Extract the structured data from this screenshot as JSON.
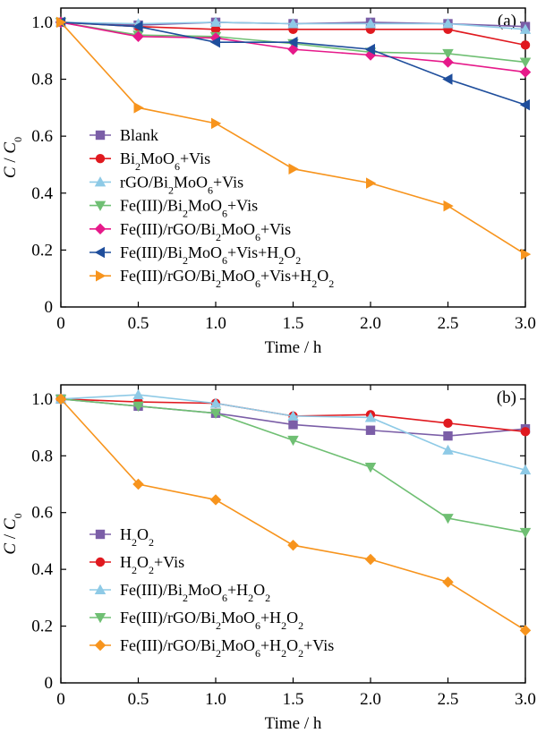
{
  "chart_data": [
    {
      "type": "line",
      "panel_label": "(a)",
      "xlabel": "Time / h",
      "ylabel": "C / C0",
      "xlim": [
        0,
        3.0
      ],
      "ylim": [
        0,
        1.05
      ],
      "x_ticks": [
        "0",
        "0.5",
        "1.0",
        "1.5",
        "2.0",
        "2.5",
        "3.0"
      ],
      "y_ticks": [
        "0",
        "0.2",
        "0.4",
        "0.6",
        "0.8",
        "1.0"
      ],
      "legend_position": "bottom-left",
      "x": [
        0,
        0.5,
        1.0,
        1.5,
        2.0,
        2.5,
        3.0
      ],
      "series": [
        {
          "name": "Blank",
          "name_html": "Blank",
          "color": "#7b5ea7",
          "marker": "square",
          "values": [
            1.0,
            0.99,
            1.0,
            0.995,
            1.0,
            0.995,
            0.985
          ]
        },
        {
          "name": "Bi2MoO6+Vis",
          "name_html": "Bi<tspan baseline-shift=\"sub\" font-size=\"12\">2</tspan>MoO<tspan baseline-shift=\"sub\" font-size=\"12\">6</tspan>+Vis",
          "color": "#e0191f",
          "marker": "circle",
          "values": [
            1.0,
            0.985,
            0.975,
            0.975,
            0.975,
            0.975,
            0.92
          ]
        },
        {
          "name": "rGO/Bi2MoO6+Vis",
          "name_html": "rGO/Bi<tspan baseline-shift=\"sub\" font-size=\"12\">2</tspan>MoO<tspan baseline-shift=\"sub\" font-size=\"12\">6</tspan>+Vis",
          "color": "#8ecae6",
          "marker": "triangle-up",
          "values": [
            1.0,
            0.995,
            1.0,
            0.995,
            0.995,
            0.995,
            0.975
          ]
        },
        {
          "name": "Fe(III)/Bi2MoO6+Vis",
          "name_html": "Fe(III)/Bi<tspan baseline-shift=\"sub\" font-size=\"12\">2</tspan>MoO<tspan baseline-shift=\"sub\" font-size=\"12\">6</tspan>+Vis",
          "color": "#6fbf73",
          "marker": "triangle-down",
          "values": [
            1.0,
            0.955,
            0.95,
            0.925,
            0.895,
            0.89,
            0.86
          ]
        },
        {
          "name": "Fe(III)/rGO/Bi2MoO6+Vis",
          "name_html": "Fe(III)/rGO/Bi<tspan baseline-shift=\"sub\" font-size=\"12\">2</tspan>MoO<tspan baseline-shift=\"sub\" font-size=\"12\">6</tspan>+Vis",
          "color": "#e6198a",
          "marker": "diamond",
          "values": [
            1.0,
            0.95,
            0.945,
            0.905,
            0.885,
            0.86,
            0.825
          ]
        },
        {
          "name": "Fe(III)/Bi2MoO6+Vis+H2O2",
          "name_html": "Fe(III)/Bi<tspan baseline-shift=\"sub\" font-size=\"12\">2</tspan>MoO<tspan baseline-shift=\"sub\" font-size=\"12\">6</tspan>+Vis+H<tspan baseline-shift=\"sub\" font-size=\"12\">2</tspan>O<tspan baseline-shift=\"sub\" font-size=\"12\">2</tspan>",
          "color": "#1f4e9c",
          "marker": "triangle-left",
          "values": [
            1.0,
            0.985,
            0.93,
            0.93,
            0.905,
            0.8,
            0.71
          ]
        },
        {
          "name": "Fe(III)/rGO/Bi2MoO6+Vis+H2O2",
          "name_html": "Fe(III)/rGO/Bi<tspan baseline-shift=\"sub\" font-size=\"12\">2</tspan>MoO<tspan baseline-shift=\"sub\" font-size=\"12\">6</tspan>+Vis+H<tspan baseline-shift=\"sub\" font-size=\"12\">2</tspan>O<tspan baseline-shift=\"sub\" font-size=\"12\">2</tspan>",
          "color": "#f7941d",
          "marker": "triangle-right",
          "values": [
            1.0,
            0.7,
            0.645,
            0.485,
            0.435,
            0.355,
            0.185
          ]
        }
      ]
    },
    {
      "type": "line",
      "panel_label": "(b)",
      "xlabel": "Time / h",
      "ylabel": "C / C0",
      "xlim": [
        0,
        3.0
      ],
      "ylim": [
        0,
        1.05
      ],
      "x_ticks": [
        "0",
        "0.5",
        "1.0",
        "1.5",
        "2.0",
        "2.5",
        "3.0"
      ],
      "y_ticks": [
        "0",
        "0.2",
        "0.4",
        "0.6",
        "0.8",
        "1.0"
      ],
      "legend_position": "bottom-left",
      "x": [
        0,
        0.5,
        1.0,
        1.5,
        2.0,
        2.5,
        3.0
      ],
      "series": [
        {
          "name": "H2O2",
          "name_html": "H<tspan baseline-shift=\"sub\" font-size=\"12\">2</tspan>O<tspan baseline-shift=\"sub\" font-size=\"12\">2</tspan>",
          "color": "#7b5ea7",
          "marker": "square",
          "values": [
            1.0,
            0.975,
            0.95,
            0.91,
            0.89,
            0.87,
            0.895
          ]
        },
        {
          "name": "H2O2+Vis",
          "name_html": "H<tspan baseline-shift=\"sub\" font-size=\"12\">2</tspan>O<tspan baseline-shift=\"sub\" font-size=\"12\">2</tspan>+Vis",
          "color": "#e0191f",
          "marker": "circle",
          "values": [
            1.0,
            0.99,
            0.985,
            0.94,
            0.945,
            0.915,
            0.885
          ]
        },
        {
          "name": "Fe(III)/Bi2MoO6+H2O2",
          "name_html": "Fe(III)/Bi<tspan baseline-shift=\"sub\" font-size=\"12\">2</tspan>MoO<tspan baseline-shift=\"sub\" font-size=\"12\">6</tspan>+H<tspan baseline-shift=\"sub\" font-size=\"12\">2</tspan>O<tspan baseline-shift=\"sub\" font-size=\"12\">2</tspan>",
          "color": "#8ecae6",
          "marker": "triangle-up",
          "values": [
            1.0,
            1.015,
            0.985,
            0.94,
            0.935,
            0.82,
            0.75
          ]
        },
        {
          "name": "Fe(III)/rGO/Bi2MoO6+H2O2",
          "name_html": "Fe(III)/rGO/Bi<tspan baseline-shift=\"sub\" font-size=\"12\">2</tspan>MoO<tspan baseline-shift=\"sub\" font-size=\"12\">6</tspan>+H<tspan baseline-shift=\"sub\" font-size=\"12\">2</tspan>O<tspan baseline-shift=\"sub\" font-size=\"12\">2</tspan>",
          "color": "#6fbf73",
          "marker": "triangle-down",
          "values": [
            1.0,
            0.975,
            0.95,
            0.855,
            0.76,
            0.58,
            0.53
          ]
        },
        {
          "name": "Fe(III)/rGO/Bi2MoO6+H2O2+Vis",
          "name_html": "Fe(III)/rGO/Bi<tspan baseline-shift=\"sub\" font-size=\"12\">2</tspan>MoO<tspan baseline-shift=\"sub\" font-size=\"12\">6</tspan>+H<tspan baseline-shift=\"sub\" font-size=\"12\">2</tspan>O<tspan baseline-shift=\"sub\" font-size=\"12\">2</tspan>+Vis",
          "color": "#f7941d",
          "marker": "diamond",
          "values": [
            1.0,
            0.7,
            0.645,
            0.485,
            0.435,
            0.355,
            0.185
          ]
        }
      ]
    }
  ]
}
